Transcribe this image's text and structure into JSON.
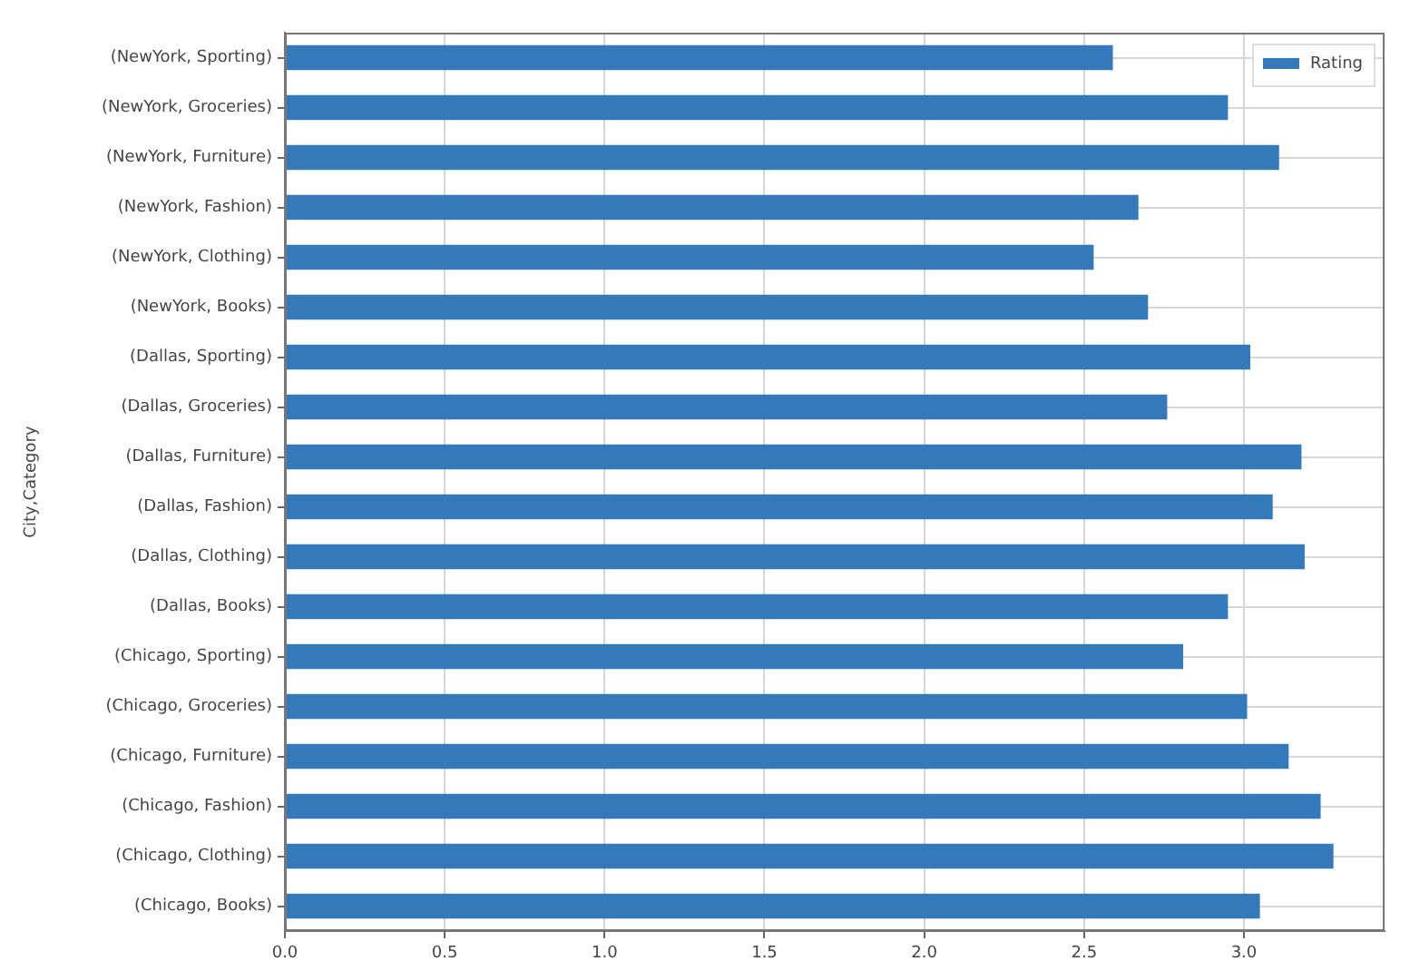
{
  "chart_data": {
    "type": "bar",
    "orientation": "horizontal",
    "ylabel": "City,Category",
    "categories": [
      "(NewYork, Sporting)",
      "(NewYork, Groceries)",
      "(NewYork, Furniture)",
      "(NewYork, Fashion)",
      "(NewYork, Clothing)",
      "(NewYork, Books)",
      "(Dallas, Sporting)",
      "(Dallas, Groceries)",
      "(Dallas, Furniture)",
      "(Dallas, Fashion)",
      "(Dallas, Clothing)",
      "(Dallas, Books)",
      "(Chicago, Sporting)",
      "(Chicago, Groceries)",
      "(Chicago, Furniture)",
      "(Chicago, Fashion)",
      "(Chicago, Clothing)",
      "(Chicago, Books)"
    ],
    "series": [
      {
        "name": "Rating",
        "color": "#3479ba",
        "values": [
          2.59,
          2.95,
          3.11,
          2.67,
          2.53,
          2.7,
          3.02,
          2.76,
          3.18,
          3.09,
          3.19,
          2.95,
          2.81,
          3.01,
          3.14,
          3.24,
          3.28,
          3.05
        ]
      }
    ],
    "xlim": [
      0,
      3.44
    ],
    "xticks": [
      {
        "value": 0,
        "label": "0.0"
      },
      0.5,
      {
        "value": 1,
        "label": "1.0"
      },
      1.5,
      {
        "value": 2,
        "label": "2.0"
      },
      2.5,
      {
        "value": 3,
        "label": "3.0"
      }
    ],
    "grid": true,
    "legend": "top right"
  }
}
